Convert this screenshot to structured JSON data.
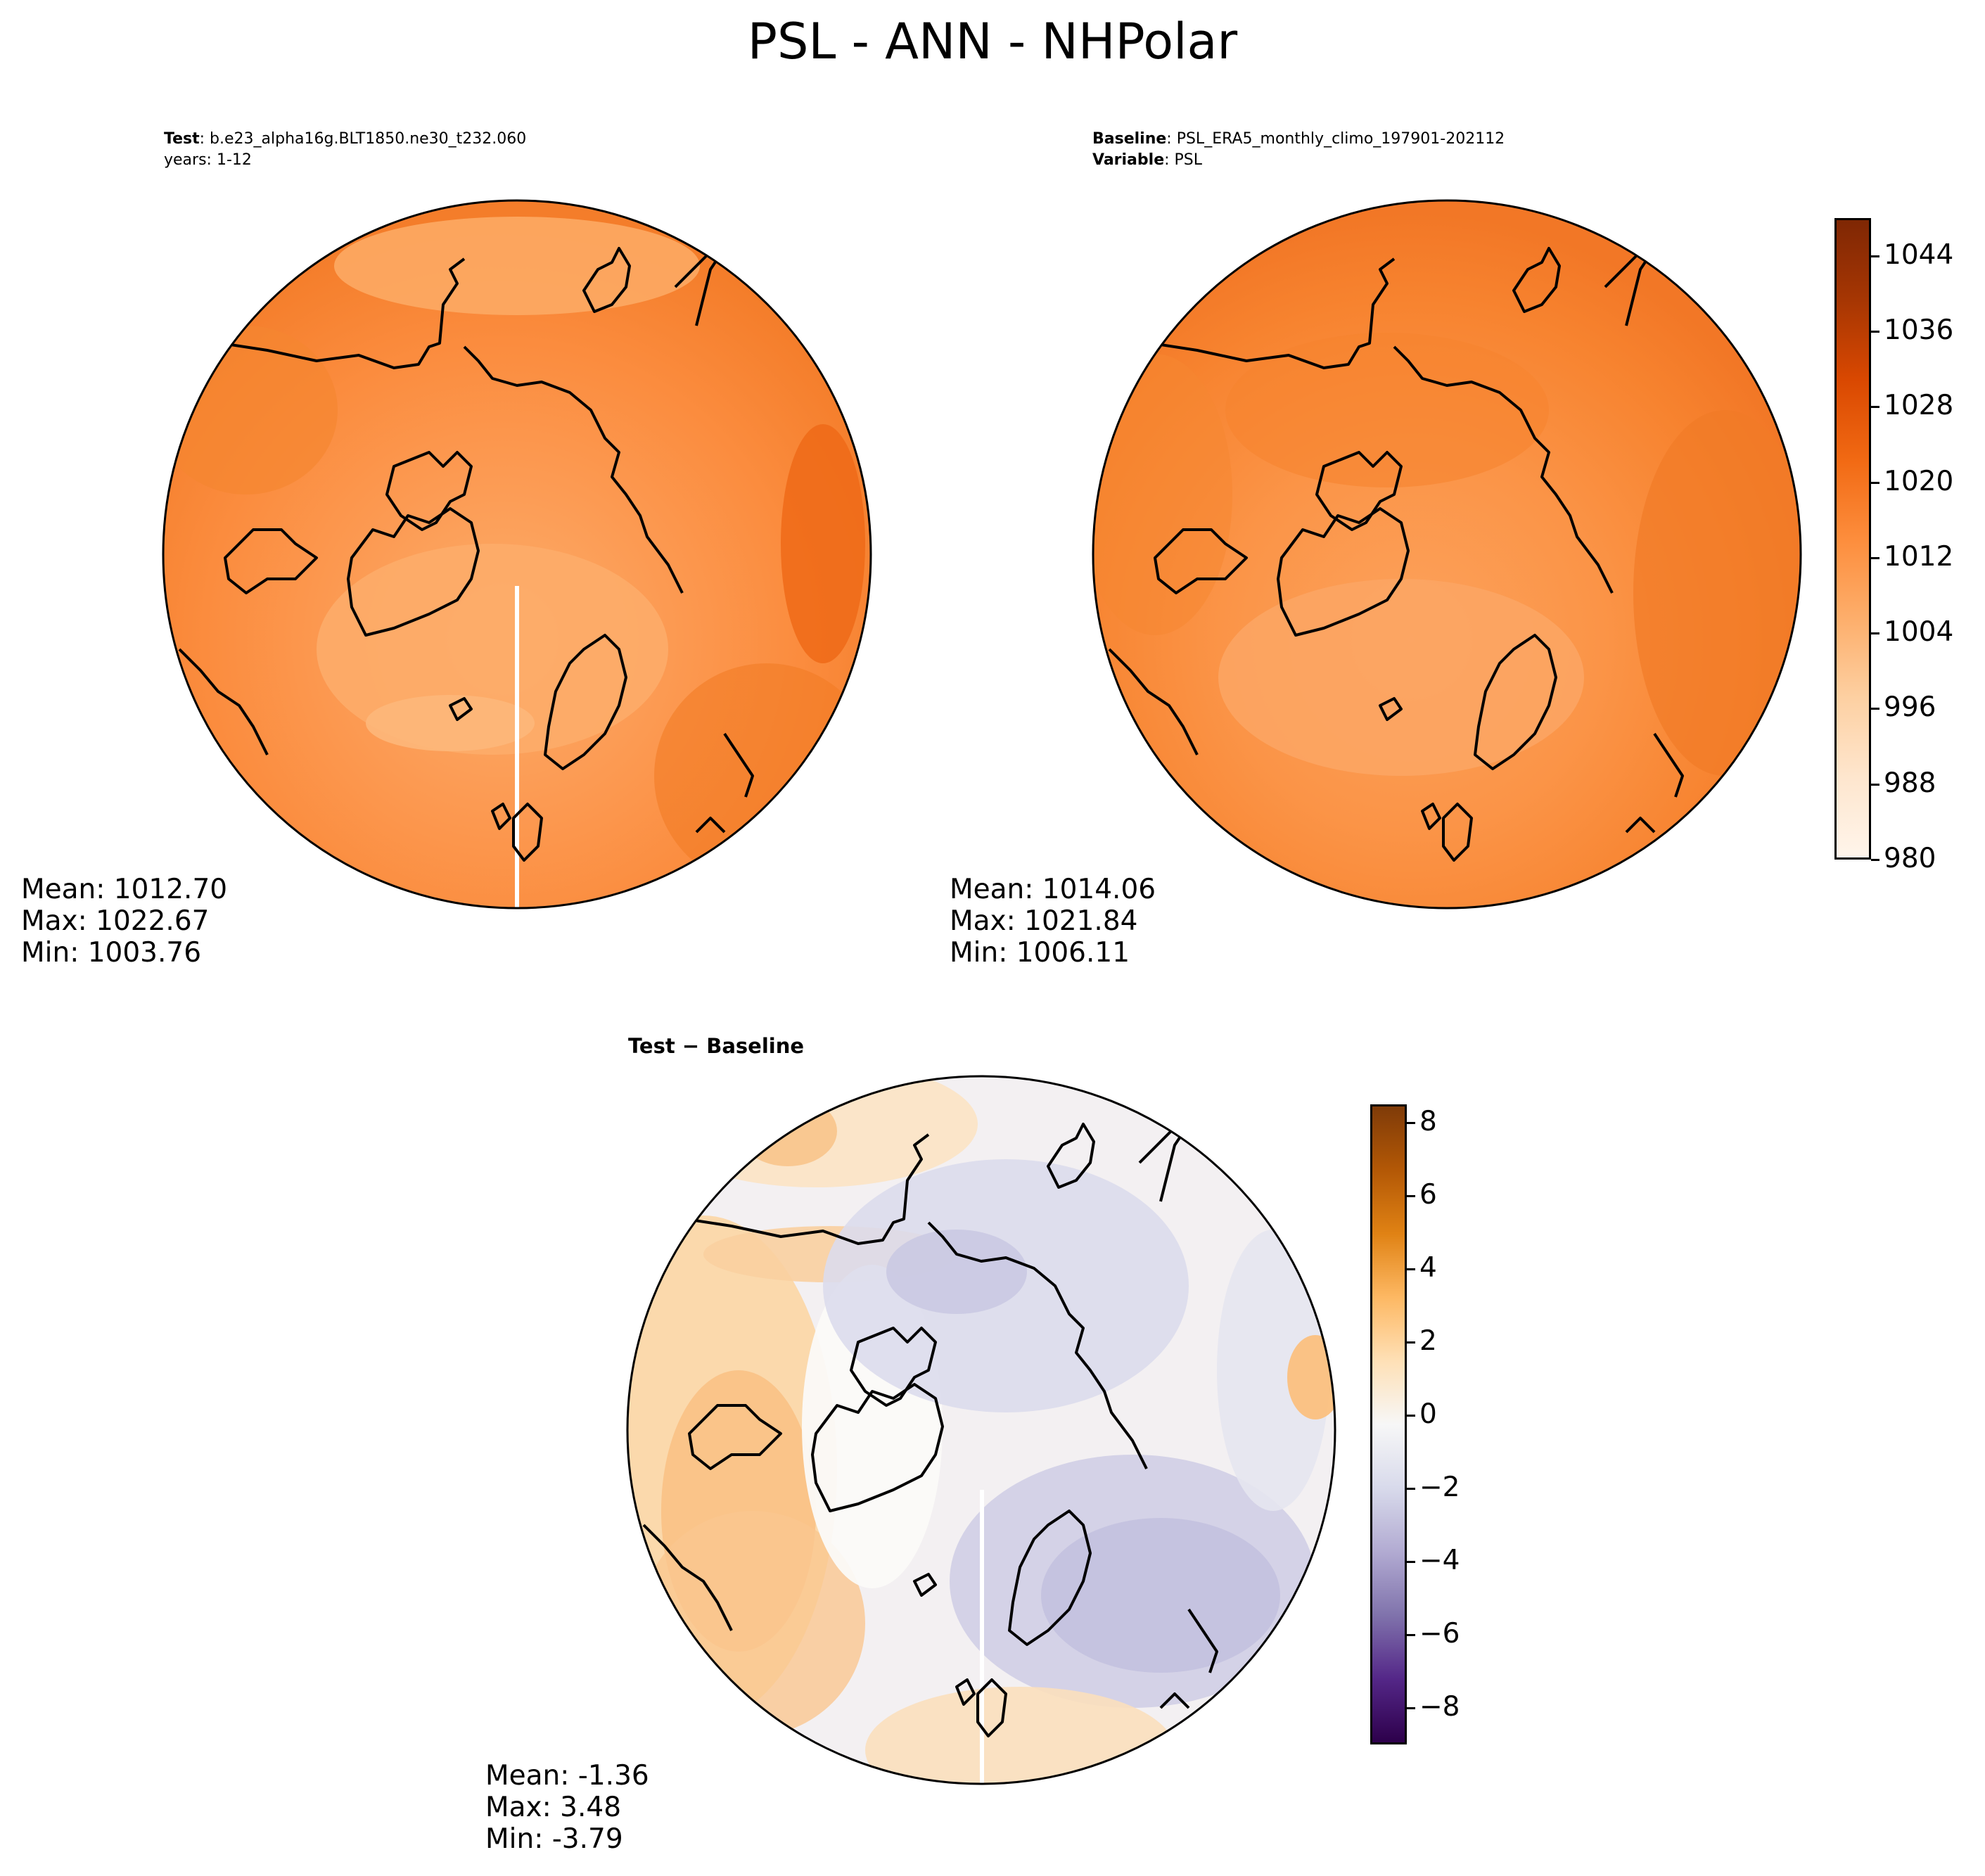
{
  "figure": {
    "title": "PSL - ANN - NHPolar"
  },
  "panels": {
    "test": {
      "label": "Test",
      "case": ": b.e23_alpha16g.BLT1850.ne30_t232.060",
      "years": "years: 1-12",
      "mean": "Mean: 1012.70",
      "max": "Max: 1022.67",
      "min": "Min: 1003.76"
    },
    "baseline": {
      "label": "Baseline",
      "case": ": PSL_ERA5_monthly_climo_197901-202112",
      "var_label": "Variable",
      "var": ": PSL",
      "mean": "Mean: 1014.06",
      "max": "Max: 1021.84",
      "min": "Min: 1006.11"
    },
    "diff": {
      "title": "Test − Baseline",
      "mean": "Mean: -1.36",
      "max": "Max:  3.48",
      "min": "Min: -3.79"
    }
  },
  "chart_data": [
    {
      "type": "heatmap",
      "title": "Test",
      "projection": "north polar stereographic",
      "colormap": "Oranges",
      "colorbar": {
        "range": [
          980,
          1048
        ],
        "ticks": [
          "980",
          "988",
          "996",
          "1004",
          "1012",
          "1020",
          "1028",
          "1036",
          "1044"
        ]
      },
      "stats": {
        "mean": 1012.7,
        "max": 1022.67,
        "min": 1003.76
      }
    },
    {
      "type": "heatmap",
      "title": "Baseline",
      "projection": "north polar stereographic",
      "colormap": "Oranges",
      "colorbar": {
        "range": [
          980,
          1048
        ],
        "ticks": [
          "980",
          "988",
          "996",
          "1004",
          "1012",
          "1020",
          "1028",
          "1036",
          "1044"
        ]
      },
      "stats": {
        "mean": 1014.06,
        "max": 1021.84,
        "min": 1006.11
      }
    },
    {
      "type": "heatmap",
      "title": "Test − Baseline",
      "projection": "north polar stereographic",
      "colormap": "PuOr_r",
      "colorbar": {
        "range": [
          -9,
          8.5
        ],
        "ticks": [
          "−8",
          "−6",
          "−4",
          "−2",
          "0",
          "2",
          "4",
          "6",
          "8"
        ]
      },
      "stats": {
        "mean": -1.36,
        "max": 3.48,
        "min": -3.79
      }
    }
  ],
  "colors": {
    "oranges": [
      "#fff5eb",
      "#fee6ce",
      "#fdd0a2",
      "#fdae6b",
      "#fd8d3c",
      "#f16913",
      "#d94801",
      "#a63603",
      "#7f2704"
    ],
    "puor_r": [
      "#2d004b",
      "#542788",
      "#8073ac",
      "#b2abd2",
      "#d8daeb",
      "#f7f7f7",
      "#fee0b6",
      "#fdb863",
      "#e08214",
      "#b35806",
      "#7f3b08"
    ]
  }
}
